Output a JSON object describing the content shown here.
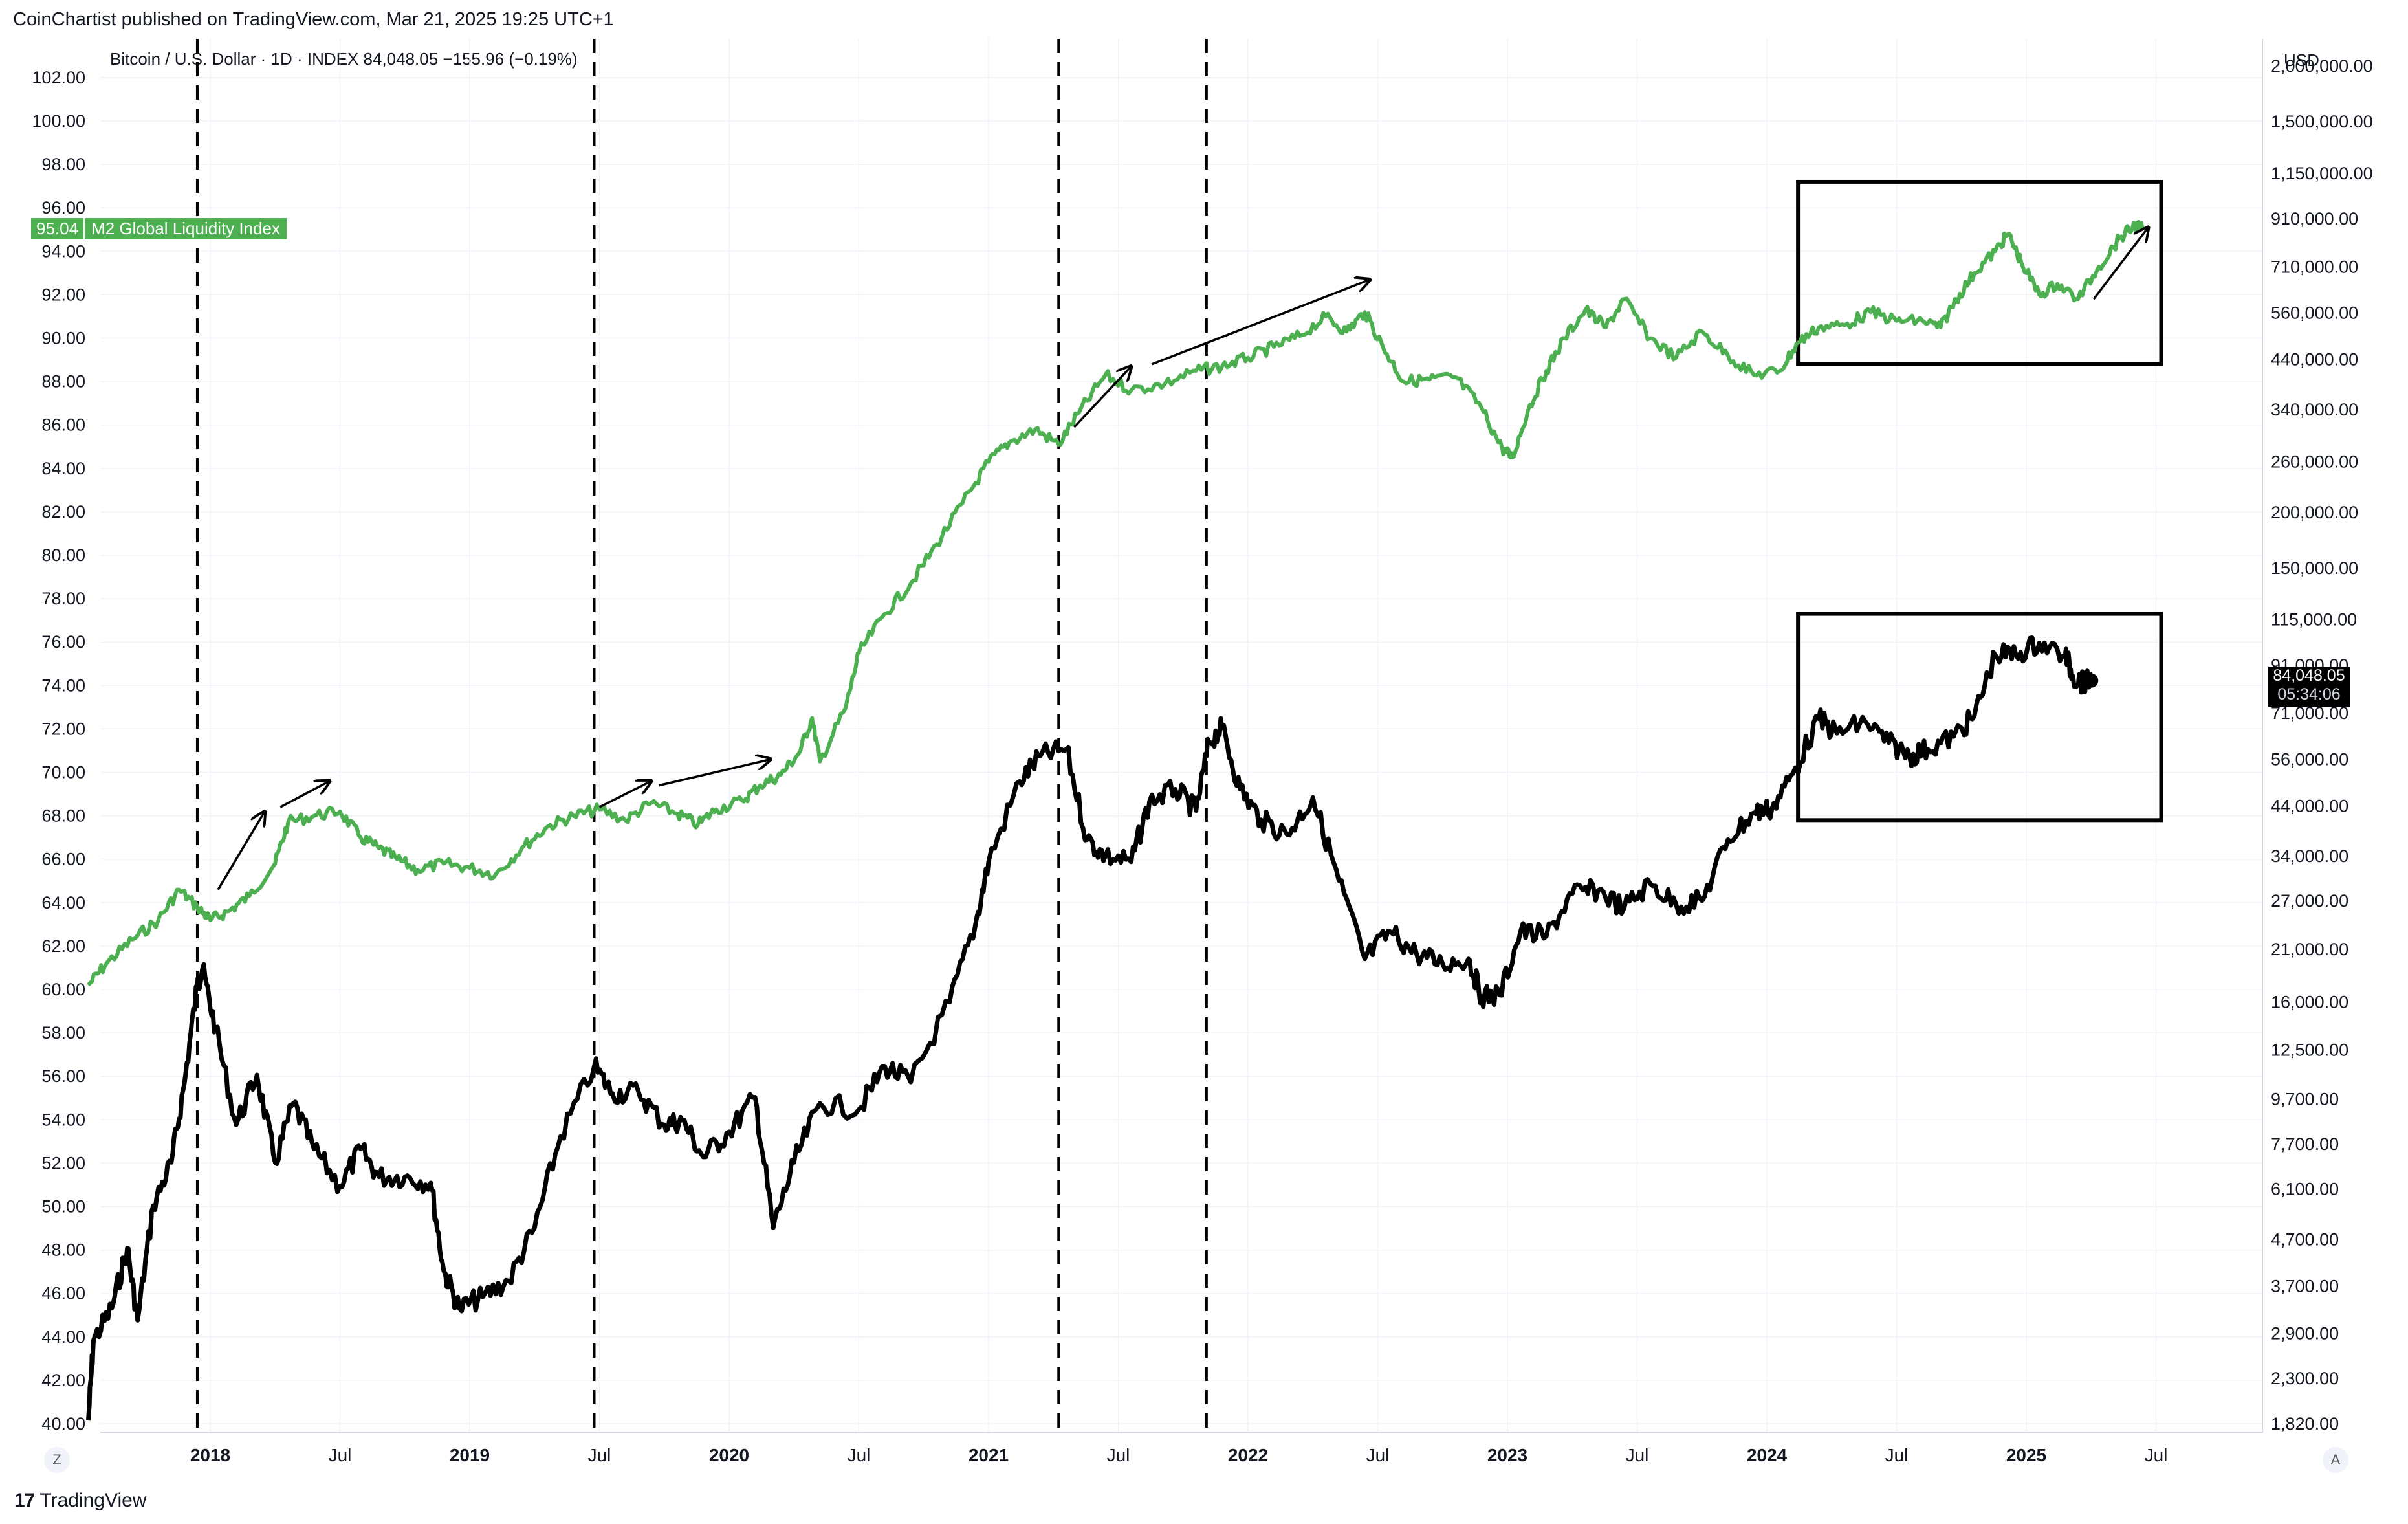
{
  "header": {
    "published": "CoinChartist published on TradingView.com, Mar 21, 2025 19:25 UTC+1",
    "symbol_line": "Bitcoin / U.S. Dollar · 1D · INDEX  84,048.05  −155.96 (−0.19%)",
    "currency": "USD"
  },
  "footer": {
    "logo_text": "TradingView",
    "scale_left": "Z",
    "scale_right": "A"
  },
  "m2_label": {
    "value": "95.04",
    "name": "M2 Global Liquidity Index"
  },
  "price_label": {
    "price": "84,048.05",
    "countdown": "05:34:06"
  },
  "colors": {
    "m2": "#4caf50",
    "btc": "#000000",
    "grid": "#f0f3fa",
    "axis_text": "#131722"
  },
  "chart_data": {
    "type": "line",
    "title": "",
    "x_ticks": [
      {
        "label": "2018",
        "t": 2018.0,
        "bold": true
      },
      {
        "label": "Jul",
        "t": 2018.5,
        "bold": false
      },
      {
        "label": "2019",
        "t": 2019.0,
        "bold": true
      },
      {
        "label": "Jul",
        "t": 2019.5,
        "bold": false
      },
      {
        "label": "2020",
        "t": 2020.0,
        "bold": true
      },
      {
        "label": "Jul",
        "t": 2020.5,
        "bold": false
      },
      {
        "label": "2021",
        "t": 2021.0,
        "bold": true
      },
      {
        "label": "Jul",
        "t": 2021.5,
        "bold": false
      },
      {
        "label": "2022",
        "t": 2022.0,
        "bold": true
      },
      {
        "label": "Jul",
        "t": 2022.5,
        "bold": false
      },
      {
        "label": "2023",
        "t": 2023.0,
        "bold": true
      },
      {
        "label": "Jul",
        "t": 2023.5,
        "bold": false
      },
      {
        "label": "2024",
        "t": 2024.0,
        "bold": true
      },
      {
        "label": "Jul",
        "t": 2024.5,
        "bold": false
      },
      {
        "label": "2025",
        "t": 2025.0,
        "bold": true
      },
      {
        "label": "Jul",
        "t": 2025.5,
        "bold": false
      }
    ],
    "left_axis": {
      "scale": "linear",
      "range": [
        40,
        102
      ],
      "ticks": [
        "102.00",
        "100.00",
        "98.00",
        "96.00",
        "94.00",
        "92.00",
        "90.00",
        "88.00",
        "86.00",
        "84.00",
        "82.00",
        "80.00",
        "78.00",
        "76.00",
        "74.00",
        "72.00",
        "70.00",
        "68.00",
        "66.00",
        "64.00",
        "62.00",
        "60.00",
        "58.00",
        "56.00",
        "54.00",
        "52.00",
        "50.00",
        "48.00",
        "46.00",
        "44.00",
        "42.00",
        "40.00"
      ]
    },
    "right_axis": {
      "scale": "log",
      "range": [
        1820,
        2000000
      ],
      "ticks": [
        "2,000,000.00",
        "1,500,000.00",
        "1,150,000.00",
        "910,000.00",
        "710,000.00",
        "560,000.00",
        "440,000.00",
        "340,000.00",
        "260,000.00",
        "200,000.00",
        "150,000.00",
        "115,000.00",
        "91,000.00",
        "71,000.00",
        "56,000.00",
        "44,000.00",
        "34,000.00",
        "27,000.00",
        "21,000.00",
        "16,000.00",
        "12,500.00",
        "9,700.00",
        "7,700.00",
        "6,100.00",
        "4,700.00",
        "3,700.00",
        "2,900.00",
        "2,300.00",
        "1,820.00"
      ]
    },
    "series": [
      {
        "name": "M2 Global Liquidity Index",
        "axis": "left",
        "points": [
          [
            2017.53,
            60.2
          ],
          [
            2017.6,
            61.2
          ],
          [
            2017.7,
            62.3
          ],
          [
            2017.8,
            63.2
          ],
          [
            2017.88,
            64.6
          ],
          [
            2017.95,
            63.8
          ],
          [
            2018.0,
            63.2
          ],
          [
            2018.07,
            63.6
          ],
          [
            2018.15,
            64.3
          ],
          [
            2018.25,
            65.8
          ],
          [
            2018.3,
            67.7
          ],
          [
            2018.4,
            68.0
          ],
          [
            2018.5,
            68.2
          ],
          [
            2018.58,
            67.0
          ],
          [
            2018.65,
            66.5
          ],
          [
            2018.72,
            66.0
          ],
          [
            2018.8,
            65.5
          ],
          [
            2018.9,
            65.8
          ],
          [
            2019.0,
            65.6
          ],
          [
            2019.1,
            65.3
          ],
          [
            2019.2,
            66.5
          ],
          [
            2019.3,
            67.5
          ],
          [
            2019.4,
            68.0
          ],
          [
            2019.5,
            68.3
          ],
          [
            2019.6,
            67.8
          ],
          [
            2019.7,
            68.6
          ],
          [
            2019.8,
            68.1
          ],
          [
            2019.88,
            67.6
          ],
          [
            2019.95,
            68.3
          ],
          [
            2020.05,
            68.7
          ],
          [
            2020.12,
            69.4
          ],
          [
            2020.2,
            69.9
          ],
          [
            2020.27,
            70.9
          ],
          [
            2020.32,
            72.5
          ],
          [
            2020.35,
            70.5
          ],
          [
            2020.45,
            73.0
          ],
          [
            2020.5,
            75.5
          ],
          [
            2020.6,
            77.3
          ],
          [
            2020.7,
            78.7
          ],
          [
            2020.8,
            80.5
          ],
          [
            2020.9,
            82.4
          ],
          [
            2021.0,
            84.3
          ],
          [
            2021.08,
            85.2
          ],
          [
            2021.18,
            85.8
          ],
          [
            2021.27,
            85.1
          ],
          [
            2021.35,
            86.6
          ],
          [
            2021.45,
            88.3
          ],
          [
            2021.55,
            87.6
          ],
          [
            2021.68,
            87.9
          ],
          [
            2021.8,
            88.5
          ],
          [
            2021.9,
            88.7
          ],
          [
            2022.0,
            89.1
          ],
          [
            2022.1,
            89.6
          ],
          [
            2022.2,
            90.1
          ],
          [
            2022.3,
            91.0
          ],
          [
            2022.38,
            90.3
          ],
          [
            2022.45,
            91.2
          ],
          [
            2022.52,
            89.6
          ],
          [
            2022.6,
            88.0
          ],
          [
            2022.7,
            88.1
          ],
          [
            2022.8,
            88.2
          ],
          [
            2022.9,
            86.8
          ],
          [
            2022.98,
            84.9
          ],
          [
            2023.02,
            84.5
          ],
          [
            2023.08,
            86.7
          ],
          [
            2023.15,
            88.5
          ],
          [
            2023.22,
            90.0
          ],
          [
            2023.3,
            91.3
          ],
          [
            2023.38,
            90.5
          ],
          [
            2023.45,
            91.8
          ],
          [
            2023.55,
            90.0
          ],
          [
            2023.65,
            89.1
          ],
          [
            2023.75,
            90.3
          ],
          [
            2023.85,
            89.2
          ],
          [
            2023.95,
            88.3
          ],
          [
            2024.05,
            88.5
          ],
          [
            2024.12,
            89.8
          ],
          [
            2024.2,
            90.5
          ],
          [
            2024.3,
            90.6
          ],
          [
            2024.4,
            91.2
          ],
          [
            2024.5,
            90.8
          ],
          [
            2024.6,
            90.8
          ],
          [
            2024.67,
            90.5
          ],
          [
            2024.73,
            91.8
          ],
          [
            2024.8,
            93.0
          ],
          [
            2024.88,
            94.0
          ],
          [
            2024.93,
            94.8
          ],
          [
            2024.98,
            93.5
          ],
          [
            2025.05,
            92.0
          ],
          [
            2025.12,
            92.5
          ],
          [
            2025.2,
            91.8
          ],
          [
            2025.28,
            93.3
          ],
          [
            2025.36,
            94.6
          ],
          [
            2025.42,
            95.2
          ],
          [
            2025.45,
            95.0
          ]
        ]
      },
      {
        "name": "Bitcoin / U.S. Dollar",
        "axis": "right",
        "points": [
          [
            2017.53,
            1850
          ],
          [
            2017.55,
            2800
          ],
          [
            2017.62,
            3300
          ],
          [
            2017.68,
            4500
          ],
          [
            2017.72,
            3100
          ],
          [
            2017.78,
            5600
          ],
          [
            2017.85,
            7000
          ],
          [
            2017.9,
            10500
          ],
          [
            2017.95,
            17500
          ],
          [
            2017.97,
            19000
          ],
          [
            2018.02,
            14000
          ],
          [
            2018.1,
            8500
          ],
          [
            2018.18,
            11000
          ],
          [
            2018.25,
            7000
          ],
          [
            2018.32,
            9500
          ],
          [
            2018.4,
            7500
          ],
          [
            2018.5,
            6200
          ],
          [
            2018.58,
            7500
          ],
          [
            2018.65,
            6500
          ],
          [
            2018.75,
            6500
          ],
          [
            2018.85,
            6300
          ],
          [
            2018.9,
            4000
          ],
          [
            2018.96,
            3300
          ],
          [
            2019.05,
            3500
          ],
          [
            2019.15,
            3800
          ],
          [
            2019.25,
            5000
          ],
          [
            2019.35,
            8000
          ],
          [
            2019.48,
            11500
          ],
          [
            2019.55,
            10000
          ],
          [
            2019.65,
            10100
          ],
          [
            2019.75,
            8500
          ],
          [
            2019.82,
            8700
          ],
          [
            2019.9,
            7200
          ],
          [
            2020.0,
            8200
          ],
          [
            2020.1,
            9800
          ],
          [
            2020.17,
            5000
          ],
          [
            2020.25,
            7000
          ],
          [
            2020.35,
            9500
          ],
          [
            2020.5,
            9200
          ],
          [
            2020.6,
            11500
          ],
          [
            2020.7,
            10600
          ],
          [
            2020.85,
            16000
          ],
          [
            2020.95,
            24000
          ],
          [
            2021.0,
            33000
          ],
          [
            2021.12,
            50000
          ],
          [
            2021.2,
            57000
          ],
          [
            2021.3,
            59000
          ],
          [
            2021.38,
            37000
          ],
          [
            2021.45,
            34000
          ],
          [
            2021.55,
            33000
          ],
          [
            2021.62,
            45000
          ],
          [
            2021.72,
            48000
          ],
          [
            2021.8,
            43000
          ],
          [
            2021.85,
            61000
          ],
          [
            2021.9,
            66000
          ],
          [
            2021.97,
            48000
          ],
          [
            2022.05,
            41000
          ],
          [
            2022.15,
            38000
          ],
          [
            2022.25,
            46000
          ],
          [
            2022.35,
            30000
          ],
          [
            2022.45,
            20000
          ],
          [
            2022.55,
            23000
          ],
          [
            2022.65,
            20500
          ],
          [
            2022.75,
            19500
          ],
          [
            2022.85,
            20000
          ],
          [
            2022.9,
            16500
          ],
          [
            2022.97,
            16600
          ],
          [
            2023.05,
            23000
          ],
          [
            2023.15,
            22500
          ],
          [
            2023.25,
            28000
          ],
          [
            2023.35,
            28500
          ],
          [
            2023.45,
            26000
          ],
          [
            2023.55,
            29500
          ],
          [
            2023.65,
            26500
          ],
          [
            2023.75,
            27000
          ],
          [
            2023.85,
            37000
          ],
          [
            2023.95,
            42500
          ],
          [
            2024.02,
            43500
          ],
          [
            2024.1,
            52000
          ],
          [
            2024.2,
            69000
          ],
          [
            2024.27,
            64000
          ],
          [
            2024.38,
            68000
          ],
          [
            2024.47,
            61000
          ],
          [
            2024.55,
            57000
          ],
          [
            2024.62,
            59000
          ],
          [
            2024.72,
            63000
          ],
          [
            2024.8,
            70000
          ],
          [
            2024.88,
            96000
          ],
          [
            2024.96,
            96000
          ],
          [
            2025.05,
            102000
          ],
          [
            2025.15,
            96000
          ],
          [
            2025.18,
            86000
          ],
          [
            2025.22,
            83000
          ],
          [
            2025.25,
            84048
          ]
        ]
      }
    ],
    "dashed_verticals": [
      2017.95,
      2019.48,
      2021.27,
      2021.84
    ],
    "annotation_boxes": [
      {
        "axis": "left",
        "x": [
          2024.12,
          2025.52
        ],
        "y": [
          88.8,
          97.2
        ]
      },
      {
        "axis": "left",
        "x": [
          2024.12,
          2025.52
        ],
        "y": [
          67.8,
          77.3
        ]
      }
    ],
    "arrows": [
      {
        "from": [
          2018.03,
          64.6
        ],
        "to": [
          2018.21,
          68.2
        ]
      },
      {
        "from": [
          2018.27,
          68.4
        ],
        "to": [
          2018.46,
          69.6
        ]
      },
      {
        "from": [
          2019.5,
          68.4
        ],
        "to": [
          2019.7,
          69.6
        ]
      },
      {
        "from": [
          2019.73,
          69.4
        ],
        "to": [
          2020.16,
          70.6
        ]
      },
      {
        "from": [
          2021.33,
          85.9
        ],
        "to": [
          2021.55,
          88.7
        ]
      },
      {
        "from": [
          2021.63,
          88.8
        ],
        "to": [
          2022.47,
          92.7
        ]
      },
      {
        "from": [
          2025.26,
          91.8
        ],
        "to": [
          2025.47,
          95.1
        ]
      }
    ],
    "m2_last": 95.04,
    "btc_last": 84048.05
  }
}
